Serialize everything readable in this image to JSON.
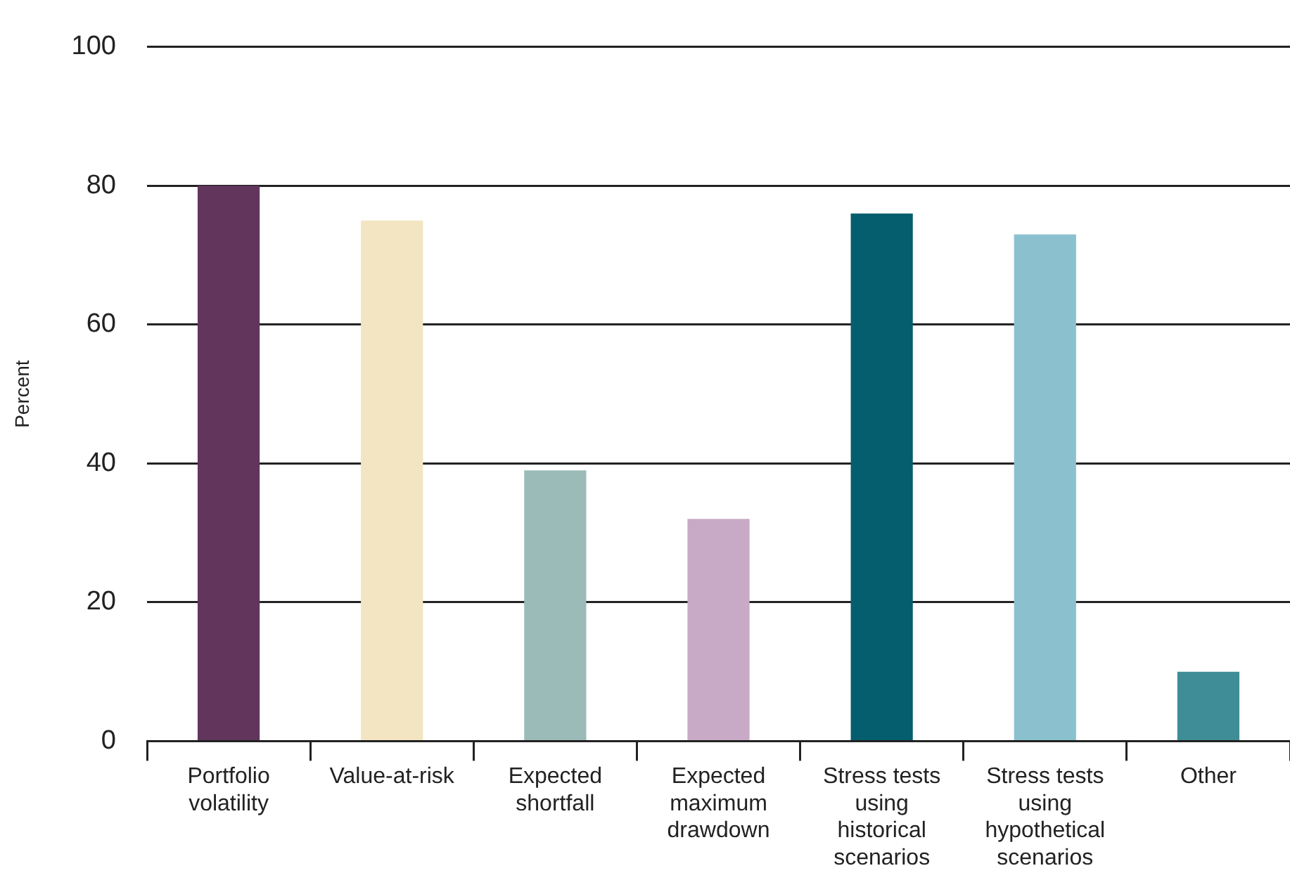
{
  "chart_data": {
    "type": "bar",
    "ylabel": "Percent",
    "categories": [
      "Portfolio volatility",
      "Value-at-risk",
      "Expected shortfall",
      "Expected maximum drawdown",
      "Stress tests using historical scenarios",
      "Stress tests using hypothetical scenarios",
      "Other"
    ],
    "values": [
      80,
      75,
      39,
      32,
      76,
      73,
      10
    ],
    "colors": [
      "#62355d",
      "#f3e5c2",
      "#9bbbb8",
      "#c9aac6",
      "#045e6e",
      "#8bc1cf",
      "#3f8d97"
    ],
    "ylim": [
      0,
      100
    ],
    "yticks": [
      0,
      20,
      40,
      60,
      80,
      100
    ],
    "grid": "y",
    "legend": false
  }
}
